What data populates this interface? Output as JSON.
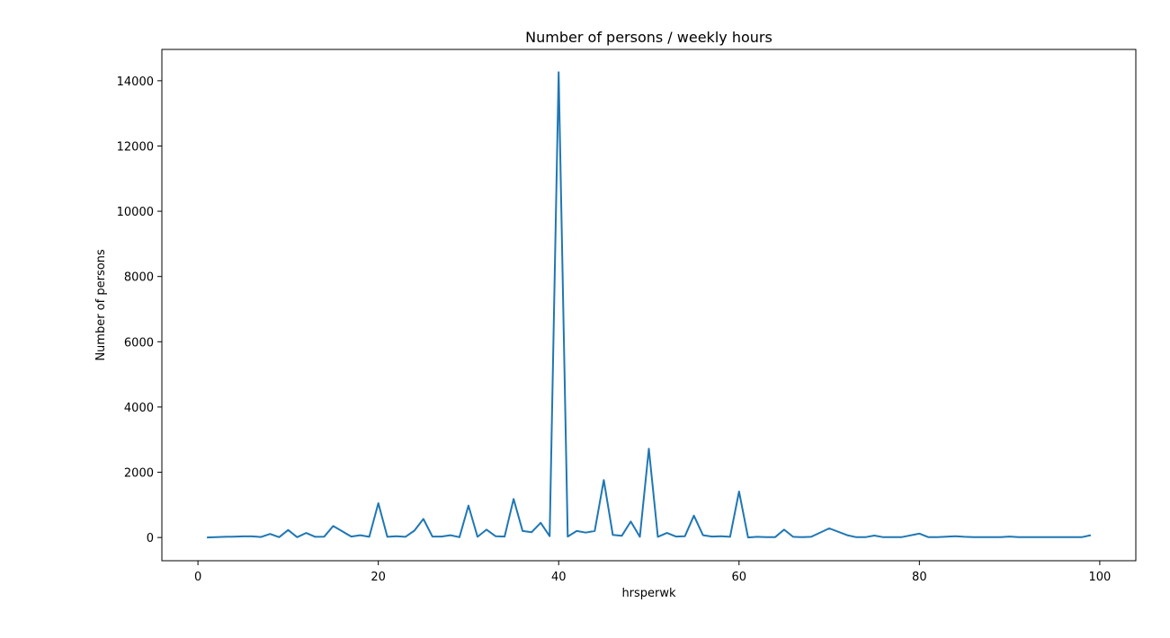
{
  "chart_data": {
    "type": "line",
    "title": "Number of persons / weekly hours",
    "xlabel": "hrsperwk",
    "ylabel": "Number of persons",
    "xlim": [
      -4,
      104
    ],
    "ylim": [
      -712,
      14960
    ],
    "xticks": [
      0,
      20,
      40,
      60,
      80,
      100
    ],
    "yticks": [
      0,
      2000,
      4000,
      6000,
      8000,
      10000,
      12000,
      14000
    ],
    "grid": false,
    "line_color": "#1f77b4",
    "series": [
      {
        "x": [
          1,
          2,
          3,
          4,
          5,
          6,
          7,
          8,
          9,
          10,
          11,
          12,
          13,
          14,
          15,
          16,
          17,
          18,
          19,
          20,
          21,
          22,
          23,
          24,
          25,
          26,
          27,
          28,
          29,
          30,
          31,
          32,
          33,
          34,
          35,
          36,
          37,
          38,
          39,
          40,
          41,
          42,
          43,
          44,
          45,
          46,
          47,
          48,
          49,
          50,
          51,
          52,
          53,
          54,
          55,
          56,
          57,
          58,
          59,
          60,
          61,
          62,
          63,
          64,
          65,
          66,
          67,
          68,
          70,
          72,
          73,
          74,
          75,
          76,
          77,
          78,
          80,
          81,
          82,
          84,
          85,
          86,
          87,
          88,
          89,
          90,
          91,
          92,
          94,
          95,
          96,
          97,
          98,
          99
        ],
        "values": [
          0,
          10,
          20,
          25,
          35,
          35,
          15,
          110,
          10,
          230,
          10,
          140,
          20,
          25,
          350,
          190,
          30,
          70,
          20,
          1050,
          20,
          40,
          20,
          210,
          570,
          30,
          30,
          70,
          10,
          980,
          20,
          240,
          40,
          30,
          1180,
          200,
          160,
          450,
          40,
          14260,
          30,
          200,
          150,
          200,
          1760,
          80,
          50,
          490,
          20,
          2720,
          20,
          140,
          30,
          40,
          670,
          70,
          30,
          40,
          20,
          1410,
          0,
          20,
          10,
          10,
          240,
          20,
          10,
          20,
          280,
          70,
          10,
          10,
          60,
          10,
          10,
          10,
          120,
          10,
          10,
          40,
          20,
          10,
          10,
          10,
          10,
          30,
          10,
          10,
          10,
          10,
          10,
          10,
          10,
          70
        ]
      }
    ]
  }
}
